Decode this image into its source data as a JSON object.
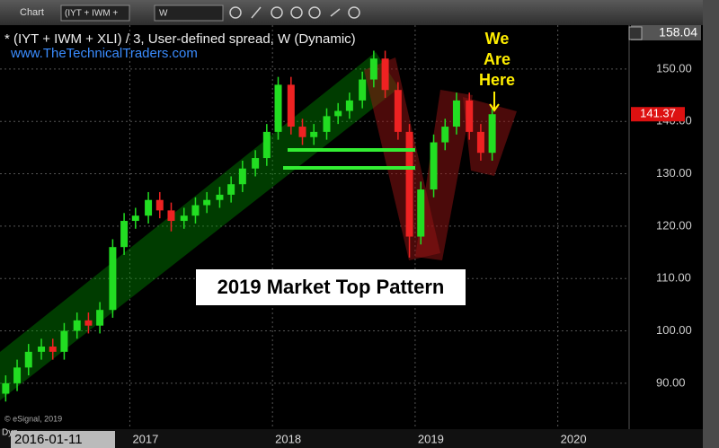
{
  "toolbar": {
    "window_title": "Chart",
    "symbol": "(IYT + IWM +",
    "interval": "W"
  },
  "chart_data": {
    "type": "candlestick",
    "title": "* (IYT + IWM + XLI) / 3, User-defined spread, W (Dynamic)",
    "subtitle": "www.TheTechnicalTraders.com",
    "annotations": [
      "We",
      "Are",
      "Here",
      "2019 Market Top Pattern"
    ],
    "copyright": "© eSignal, 2019",
    "mode_label": "Dyn",
    "cursor_date": "2016-01-11",
    "top_price_label": "158.04",
    "last_price_label": "141.37",
    "up_color": "#22dd22",
    "down_color": "#ee2222",
    "x": [
      2016.13,
      2016.21,
      2016.29,
      2016.38,
      2016.46,
      2016.54,
      2016.63,
      2016.71,
      2016.79,
      2016.88,
      2016.96,
      2017.04,
      2017.13,
      2017.21,
      2017.29,
      2017.38,
      2017.46,
      2017.54,
      2017.63,
      2017.71,
      2017.79,
      2017.88,
      2017.96,
      2018.04,
      2018.13,
      2018.21,
      2018.29,
      2018.38,
      2018.46,
      2018.54,
      2018.63,
      2018.71,
      2018.79,
      2018.88,
      2018.96,
      2019.04,
      2019.13,
      2019.21,
      2019.29,
      2019.38,
      2019.46,
      2019.54
    ],
    "open": [
      88,
      90,
      93,
      96,
      97,
      96,
      100,
      102,
      101,
      104,
      116,
      121,
      122,
      125,
      123,
      121,
      122,
      124,
      125,
      126,
      128,
      131,
      133,
      138,
      147,
      139,
      137,
      138,
      141,
      142,
      144,
      148,
      152,
      146,
      138,
      118,
      127,
      136,
      139,
      144,
      138,
      134
    ],
    "high": [
      91.5,
      94.5,
      97.5,
      98.5,
      98.5,
      101.5,
      103.5,
      103.5,
      105.5,
      117.5,
      122.5,
      123.5,
      126.5,
      126.5,
      124.5,
      123.5,
      125.5,
      126.5,
      127.5,
      129.5,
      132.5,
      134.5,
      139.5,
      148.5,
      148.5,
      140.5,
      139.5,
      142.5,
      143.5,
      145.5,
      149.5,
      153.5,
      153.5,
      147.5,
      139.5,
      128.5,
      137.5,
      140.5,
      145.5,
      145.5,
      139.5,
      142.5
    ],
    "low": [
      86.5,
      88.5,
      91.5,
      94.5,
      94.5,
      94.5,
      98.5,
      99.5,
      99.5,
      102.5,
      114.5,
      119.5,
      120.5,
      121.5,
      119,
      119.5,
      120.5,
      122.5,
      123.5,
      124.5,
      126.5,
      129.5,
      131.5,
      136.5,
      137.5,
      135.5,
      135.5,
      136.5,
      139.5,
      140.5,
      142.5,
      146.5,
      144.5,
      136.5,
      114,
      116.5,
      125.5,
      134.5,
      137.5,
      136.5,
      132.5,
      132.5
    ],
    "close": [
      90,
      93,
      96,
      97,
      96,
      100,
      102,
      101,
      104,
      116,
      121,
      122,
      125,
      123,
      121,
      122,
      124,
      125,
      126,
      128,
      131,
      133,
      138,
      147,
      139,
      137,
      138,
      141,
      142,
      144,
      148,
      152,
      146,
      138,
      118,
      127,
      136,
      139,
      144,
      138,
      134,
      141.37
    ],
    "xlim": [
      2016.09,
      2020.5
    ],
    "xticks": [
      2017,
      2018,
      2019,
      2020
    ],
    "ylim": [
      82.6,
      158.04
    ],
    "yticks": [
      {
        "value": 90,
        "label": "90.00"
      },
      {
        "value": 100,
        "label": "100.00"
      },
      {
        "value": 110,
        "label": "110.00"
      },
      {
        "value": 120,
        "label": "120.00"
      },
      {
        "value": 130,
        "label": "130.00"
      },
      {
        "value": 140,
        "label": "140.00"
      },
      {
        "value": 150,
        "label": "150.00"
      }
    ],
    "grid": true
  }
}
